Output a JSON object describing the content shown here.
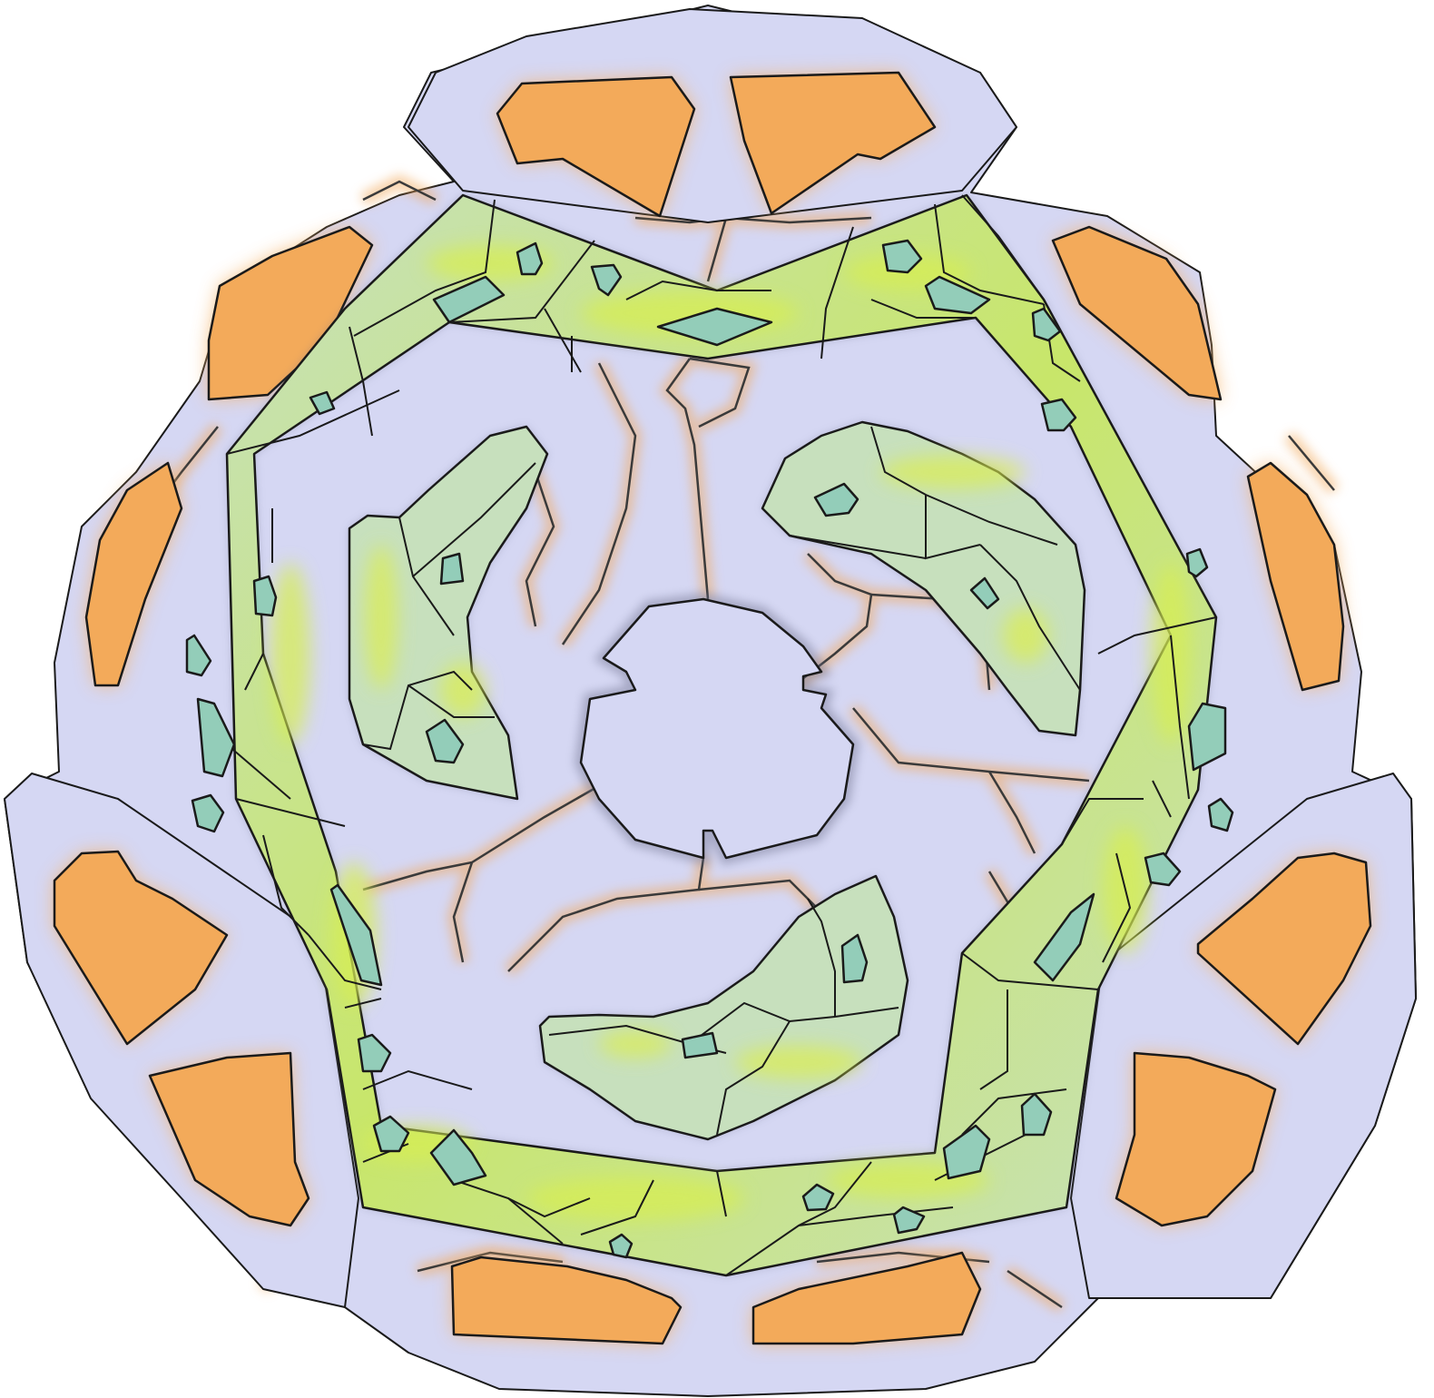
{
  "colors": {
    "background": "#ffffff",
    "base": "#d5d7f3",
    "orange": "#f3aa5a",
    "orange_glow": "#f6b46a",
    "green": "#c7e0bd",
    "green_bright": "#c4e55a",
    "yellow": "#e6ec3c",
    "teal": "#93cdb9",
    "ink": "#1a1a1a",
    "crack": "#3a3a3a",
    "crack_glow": "#f2a85a"
  },
  "icons": {
    "center_hub": "trefoil-hub-icon",
    "orange_patch": "orange-patch-icon",
    "green_band": "green-band-icon",
    "teal_cell": "teal-cell-icon"
  }
}
